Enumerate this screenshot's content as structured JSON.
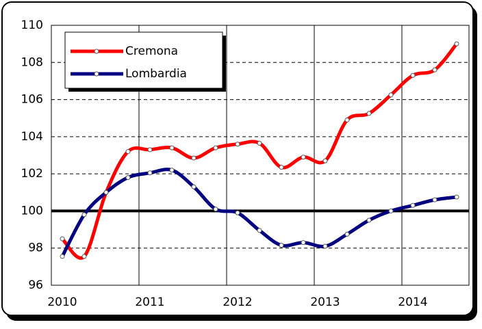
{
  "chart_data": {
    "type": "line",
    "categories": [
      "2010",
      null,
      null,
      null,
      "2011",
      null,
      null,
      null,
      "2012",
      null,
      null,
      null,
      "2013",
      null,
      null,
      null,
      "2014",
      null,
      null
    ],
    "series": [
      {
        "name": "Cremona",
        "color": "#ff0000",
        "values": [
          98.5,
          97.55,
          101.0,
          103.2,
          103.3,
          103.4,
          102.85,
          103.4,
          103.6,
          103.65,
          102.35,
          102.9,
          102.7,
          104.9,
          105.25,
          106.25,
          107.3,
          107.6,
          109.0
        ]
      },
      {
        "name": "Lombardia",
        "color": "#000080",
        "values": [
          97.55,
          99.8,
          101.0,
          101.8,
          102.05,
          102.2,
          101.3,
          100.1,
          99.9,
          98.95,
          98.15,
          98.3,
          98.1,
          98.75,
          99.5,
          100.0,
          100.3,
          100.6,
          100.75
        ]
      }
    ],
    "ylim": [
      96,
      110
    ],
    "yticks": [
      96,
      98,
      100,
      102,
      104,
      106,
      108,
      110
    ],
    "reference_line": 100,
    "grid": true,
    "legend": "top-left"
  }
}
